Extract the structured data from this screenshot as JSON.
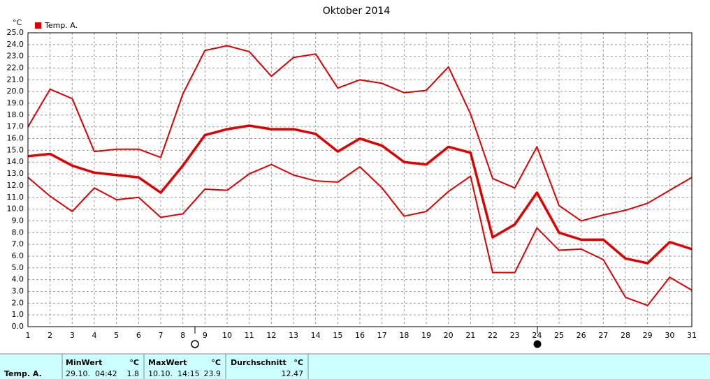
{
  "chart_data": {
    "type": "line",
    "title": "Oktober 2014",
    "y_unit": "°C",
    "x": [
      1,
      2,
      3,
      4,
      5,
      6,
      7,
      8,
      9,
      10,
      11,
      12,
      13,
      14,
      15,
      16,
      17,
      18,
      19,
      20,
      21,
      22,
      23,
      24,
      25,
      26,
      27,
      28,
      29,
      30,
      31
    ],
    "xlim": [
      1,
      31
    ],
    "xticks": [
      1,
      2,
      3,
      4,
      5,
      6,
      7,
      8,
      9,
      10,
      11,
      12,
      13,
      14,
      15,
      16,
      17,
      18,
      19,
      20,
      21,
      22,
      23,
      24,
      25,
      26,
      27,
      28,
      29,
      30,
      31
    ],
    "ylim": [
      0,
      25
    ],
    "yticks": [
      {
        "value": 0,
        "label": "0.0"
      },
      {
        "value": 1,
        "label": "1.0"
      },
      {
        "value": 2,
        "label": "2.0"
      },
      {
        "value": 3,
        "label": "3.0"
      },
      {
        "value": 4,
        "label": "4.0"
      },
      {
        "value": 5,
        "label": "5.0"
      },
      {
        "value": 6,
        "label": "6.0"
      },
      {
        "value": 7,
        "label": "7.0"
      },
      {
        "value": 8,
        "label": "8.0"
      },
      {
        "value": 9,
        "label": "9.0"
      },
      {
        "value": 10,
        "label": "10.0"
      },
      {
        "value": 11,
        "label": "11.0"
      },
      {
        "value": 12,
        "label": "12.0"
      },
      {
        "value": 13,
        "label": "13.0"
      },
      {
        "value": 14,
        "label": "14.0"
      },
      {
        "value": 15,
        "label": "15.0"
      },
      {
        "value": 16,
        "label": "16.0"
      },
      {
        "value": 17,
        "label": "17.0"
      },
      {
        "value": 18,
        "label": "18.0"
      },
      {
        "value": 19,
        "label": "19.0"
      },
      {
        "value": 20,
        "label": "20.0"
      },
      {
        "value": 21,
        "label": "21.0"
      },
      {
        "value": 22,
        "label": "22.0"
      },
      {
        "value": 23,
        "label": "23.0"
      },
      {
        "value": 24,
        "label": "24.0"
      },
      {
        "value": 25,
        "label": "25.0"
      }
    ],
    "grid": true,
    "series": [
      {
        "name": "Temp. A.",
        "color": "#e00000",
        "values": [
          14.5,
          14.7,
          13.7,
          13.1,
          12.9,
          12.7,
          11.4,
          13.7,
          16.3,
          16.8,
          17.1,
          16.8,
          16.8,
          16.4,
          14.9,
          16.0,
          15.4,
          14.0,
          13.8,
          15.3,
          14.8,
          7.6,
          8.7,
          11.4,
          8.0,
          7.4,
          7.4,
          5.8,
          5.4,
          7.2,
          6.6
        ],
        "max_values": [
          17.0,
          20.2,
          19.4,
          14.9,
          15.1,
          15.1,
          14.4,
          19.8,
          23.5,
          23.9,
          23.4,
          21.3,
          22.9,
          23.2,
          20.3,
          21.0,
          20.7,
          19.9,
          20.1,
          22.1,
          18.1,
          12.6,
          11.8,
          15.3,
          10.3,
          9.0,
          9.5,
          9.9,
          10.5,
          11.6,
          12.7
        ],
        "min_values": [
          12.7,
          11.1,
          9.8,
          11.8,
          10.8,
          11.0,
          9.3,
          9.6,
          11.7,
          11.6,
          13.0,
          13.8,
          12.9,
          12.4,
          12.3,
          13.6,
          11.8,
          9.4,
          9.8,
          11.5,
          12.8,
          4.6,
          4.6,
          8.4,
          6.5,
          6.6,
          5.7,
          2.5,
          1.8,
          4.2,
          3.1
        ]
      }
    ],
    "stats": {
      "row_label": "Temp. A.",
      "min": {
        "label": "MinWert",
        "unit": "°C",
        "time": "29.10.  04:42",
        "value": 1.8
      },
      "max": {
        "label": "MaxWert",
        "unit": "°C",
        "time": "10.10.  14:15",
        "value": 23.9
      },
      "avg": {
        "label": "Durchschnitt",
        "unit": "°C",
        "value": 12.47
      }
    }
  }
}
